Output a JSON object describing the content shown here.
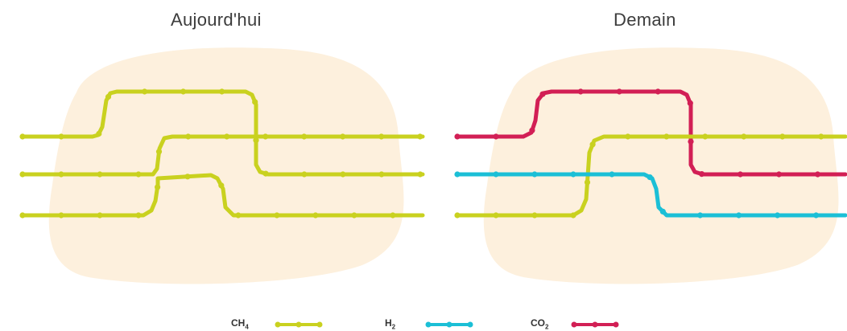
{
  "panels": [
    {
      "title": "Aujourd'hui",
      "pipes": [
        {
          "name": "pipe-top",
          "gas": "CH4"
        },
        {
          "name": "pipe-middle",
          "gas": "CH4"
        },
        {
          "name": "pipe-bottom",
          "gas": "CH4"
        }
      ]
    },
    {
      "title": "Demain",
      "pipes": [
        {
          "name": "pipe-top",
          "gas": "CO2"
        },
        {
          "name": "pipe-middle",
          "gas": "CH4"
        },
        {
          "name": "pipe-bottom",
          "gas": "H2"
        }
      ]
    }
  ],
  "legend": [
    {
      "id": "CH4",
      "base": "CH",
      "sub": "4",
      "color": "#c9d11f"
    },
    {
      "id": "H2",
      "base": "H",
      "sub": "2",
      "color": "#1bbfd6"
    },
    {
      "id": "CO2",
      "base": "CO",
      "sub": "2",
      "color": "#d21f55"
    }
  ],
  "colors": {
    "blob": "#fdf0dd",
    "title_text": "#3c3c3c"
  }
}
